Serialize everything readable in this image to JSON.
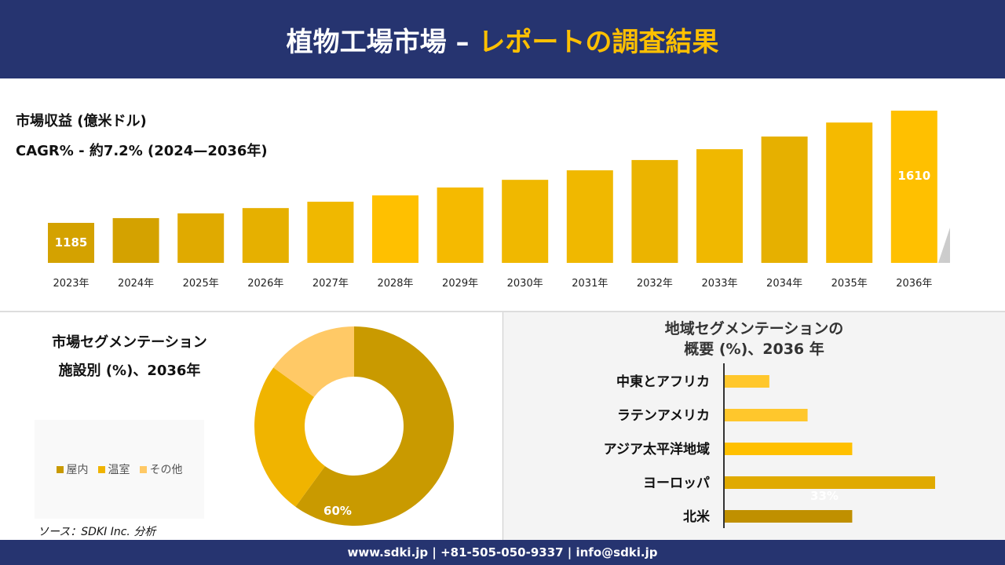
{
  "header": {
    "title_main": "植物工場市場 –",
    "title_accent": "レポートの調査結果"
  },
  "footer": {
    "contact": "www.sdki.jp | +81-505-050-9337 | info@sdki.jp"
  },
  "chart_data": [
    {
      "type": "bar",
      "title": "市場収益 (億米ドル)",
      "subtitle": "CAGR% - 約7.2% (2024—2036年)",
      "categories": [
        "2023年",
        "2024年",
        "2025年",
        "2026年",
        "2027年",
        "2028年",
        "2029年",
        "2030年",
        "2031年",
        "2032年",
        "2033年",
        "2034年",
        "2035年",
        "2036年"
      ],
      "values": [
        1185,
        1203,
        1221,
        1241,
        1265,
        1289,
        1319,
        1348,
        1384,
        1423,
        1464,
        1512,
        1565,
        1610
      ],
      "data_labels": {
        "0": "1185",
        "13": "1610"
      },
      "colors": [
        "#d4a200",
        "#d4a200",
        "#e0aa00",
        "#e6b000",
        "#f0b800",
        "#ffc000",
        "#f5ba00",
        "#f0b800",
        "#f0b800",
        "#ebb400",
        "#f0b800",
        "#e6b000",
        "#f5ba00",
        "#ffc000"
      ]
    },
    {
      "type": "pie",
      "title_line1": "市場セグメンテーション",
      "title_line2": "施設別 (%)、2036年",
      "categories": [
        "屋内",
        "温室",
        "その他"
      ],
      "values": [
        60,
        25,
        15
      ],
      "colors": [
        "#c99a00",
        "#f0b400",
        "#ffc966"
      ],
      "data_labels": {
        "0": "60%"
      }
    },
    {
      "type": "bar",
      "orientation": "horizontal",
      "title_line1": "地域セグメンテーションの",
      "title_line2": "概要 (%)、2036 年",
      "categories": [
        "中東とアフリカ",
        "ラテンアメリカ",
        "アジア太平洋地域",
        "ヨーロッパ",
        "北米"
      ],
      "values": [
        7,
        13,
        20,
        33,
        20
      ],
      "colors": [
        "#ffc72c",
        "#ffc72c",
        "#ffc000",
        "#e0aa00",
        "#c09000"
      ],
      "data_labels": {
        "3": "33%"
      }
    }
  ],
  "source": "ソース：SDKI Inc. 分析"
}
